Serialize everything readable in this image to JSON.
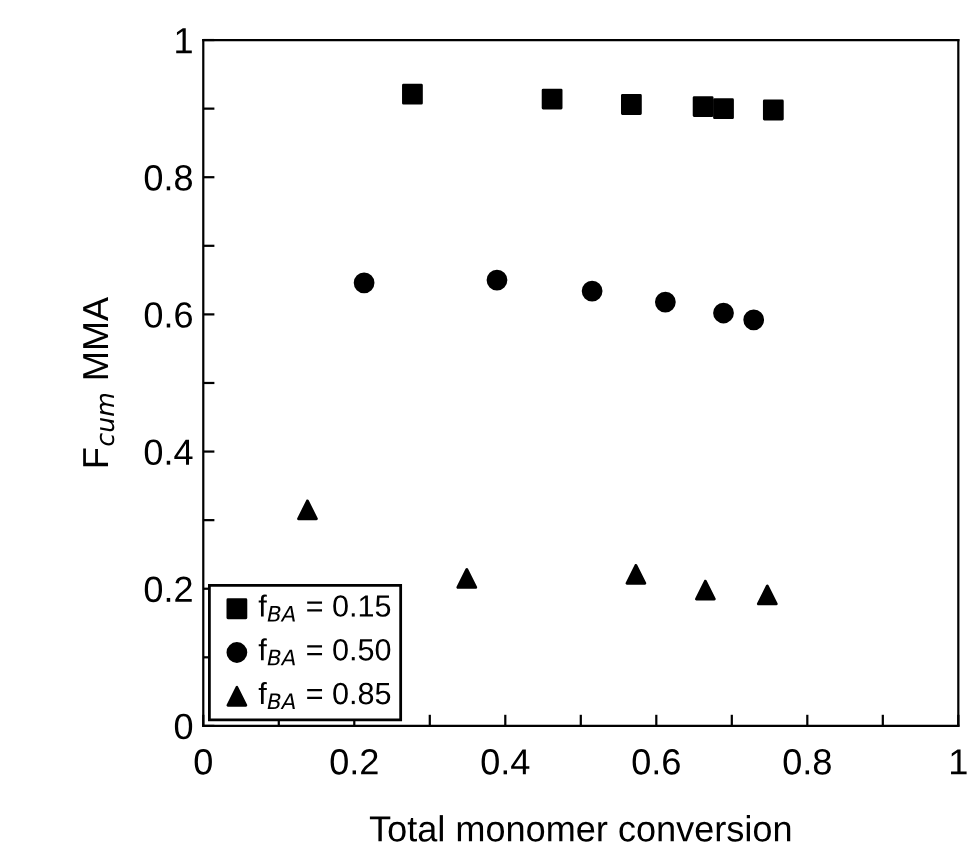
{
  "chart_data": {
    "type": "scatter",
    "xlabel": "Total monomer conversion",
    "ylabel": "F$_{cum}$ MMA",
    "xlim": [
      0,
      1
    ],
    "ylim": [
      0,
      1
    ],
    "xticks": [
      0,
      {
        "value": 0.1,
        "label": null
      },
      0.2,
      {
        "value": 0.3,
        "label": null
      },
      0.4,
      {
        "value": 0.5,
        "label": null
      },
      0.6,
      {
        "value": 0.7,
        "label": null
      },
      0.8,
      {
        "value": 0.9,
        "label": null
      },
      1
    ],
    "yticks": [
      0,
      {
        "value": 0.1,
        "label": null
      },
      0.2,
      {
        "value": 0.3,
        "label": null
      },
      0.4,
      {
        "value": 0.5,
        "label": null
      },
      0.6,
      {
        "value": 0.7,
        "label": null
      },
      0.8,
      {
        "value": 0.9,
        "label": null
      },
      1
    ],
    "grid": false,
    "legend": "bottom left",
    "series": [
      {
        "name": "f$_{BA}$ = 0.15",
        "color": "#000000",
        "marker": "square",
        "x": [
          0.277,
          0.462,
          0.567,
          0.662,
          0.689,
          0.755
        ],
        "values": [
          0.921,
          0.914,
          0.906,
          0.903,
          0.9,
          0.898
        ]
      },
      {
        "name": "f$_{BA}$ = 0.50",
        "color": "#000000",
        "marker": "circle",
        "x": [
          0.213,
          0.389,
          0.515,
          0.612,
          0.689,
          0.729
        ],
        "values": [
          0.646,
          0.65,
          0.634,
          0.618,
          0.602,
          0.592
        ]
      },
      {
        "name": "f$_{BA}$ = 0.85",
        "color": "#000000",
        "marker": "triangle",
        "x": [
          0.138,
          0.349,
          0.573,
          0.665,
          0.747
        ],
        "values": [
          0.315,
          0.215,
          0.221,
          0.198,
          0.191
        ]
      }
    ]
  }
}
